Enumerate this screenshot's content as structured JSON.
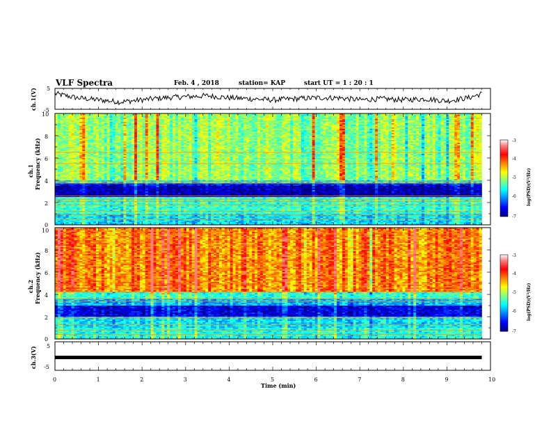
{
  "header": {
    "title": "VLF Spectra",
    "date": "Feb. 4 , 2018",
    "station": "station= KAP",
    "start": "start  UT =   1 : 20 : 1"
  },
  "colors": {
    "colormap": [
      "#000080",
      "#0000ff",
      "#0080ff",
      "#00ffff",
      "#80ff80",
      "#ffff00",
      "#ff8000",
      "#ff0000",
      "#ff8080",
      "#ffffff"
    ],
    "trace": "#000000",
    "background": "#ffffff"
  },
  "chart_data": [
    {
      "type": "line",
      "panel": "ch1-waveform",
      "ylabel": "ch.1(V)",
      "ylim": [
        -5,
        5
      ],
      "yticks": [
        "5",
        "-5"
      ],
      "xlim": [
        0,
        10
      ],
      "x": [
        0,
        0.5,
        1,
        1.5,
        2,
        2.5,
        3,
        3.5,
        4,
        4.5,
        5,
        5.5,
        6,
        6.5,
        7,
        7.5,
        8,
        8.5,
        9,
        9.5,
        9.8
      ],
      "y": [
        2.5,
        0.5,
        -0.5,
        -1.5,
        -0.5,
        0.5,
        1.0,
        1.5,
        0.5,
        0.0,
        -0.5,
        0.0,
        0.5,
        0.5,
        -0.5,
        0.0,
        -0.5,
        0.0,
        -1.0,
        0.5,
        2.5
      ]
    },
    {
      "type": "heatmap",
      "panel": "ch1-spectrogram",
      "ylabel": "ch.1",
      "ylabel2": "Frequency  (kHz)",
      "xlim": [
        0,
        10
      ],
      "ylim": [
        0,
        10
      ],
      "yticks": [
        "0",
        "2",
        "4",
        "6",
        "8",
        "10"
      ],
      "data_extent_min": 9.8,
      "colorbar": {
        "label": "log(PSD)(V²/Hz)",
        "range": [
          -7,
          -3
        ],
        "ticks": [
          "-3",
          "-4",
          "-5",
          "-6",
          "-7"
        ]
      },
      "bands": [
        {
          "from": 4.0,
          "to": 10.0,
          "level": -4.9
        },
        {
          "from": 3.8,
          "to": 4.0,
          "level": -5.5
        },
        {
          "from": 3.5,
          "to": 3.8,
          "level": -6.5
        },
        {
          "from": 2.5,
          "to": 3.5,
          "level": -6.8
        },
        {
          "from": 1.0,
          "to": 2.5,
          "level": -5.3
        },
        {
          "from": 0.0,
          "to": 1.0,
          "level": -5.6
        }
      ],
      "lines_khz": [
        0.5,
        0.9,
        1.2,
        1.8,
        2.1,
        2.3,
        2.6,
        3.7,
        3.9,
        5.5,
        6.5
      ]
    },
    {
      "type": "heatmap",
      "panel": "ch2-spectrogram",
      "ylabel": "ch.2",
      "ylabel2": "Frequency  (kHz)",
      "xlim": [
        0,
        10
      ],
      "ylim": [
        0,
        10
      ],
      "yticks": [
        "0",
        "2",
        "4",
        "6",
        "8",
        "10"
      ],
      "data_extent_min": 9.8,
      "colorbar": {
        "label": "log(PSD)(V²/Hz)",
        "range": [
          -7,
          -3
        ],
        "ticks": [
          "-3",
          "-4",
          "-5",
          "-6",
          "-7"
        ]
      },
      "bands": [
        {
          "from": 4.2,
          "to": 10.0,
          "level": -4.0
        },
        {
          "from": 3.6,
          "to": 4.2,
          "level": -5.3
        },
        {
          "from": 3.0,
          "to": 3.6,
          "level": -5.8
        },
        {
          "from": 2.0,
          "to": 3.0,
          "level": -6.6
        },
        {
          "from": 1.0,
          "to": 2.0,
          "level": -5.6
        },
        {
          "from": 0.0,
          "to": 1.0,
          "level": -5.4
        }
      ],
      "lines_khz": [
        0.4,
        0.8,
        1.3,
        1.9,
        3.4,
        3.6,
        4.2
      ]
    },
    {
      "type": "line",
      "panel": "ch3-waveform",
      "ylabel": "ch.3(V)",
      "ylim": [
        -5,
        5
      ],
      "yticks": [
        "5",
        "0",
        "-5"
      ],
      "xlim": [
        0,
        10
      ],
      "x": [
        0,
        9.8
      ],
      "y": [
        -0.5,
        -0.5
      ],
      "xlabel": "Time  (min)",
      "xticks": [
        "0",
        "1",
        "2",
        "3",
        "4",
        "5",
        "6",
        "7",
        "8",
        "9",
        "10"
      ]
    }
  ]
}
